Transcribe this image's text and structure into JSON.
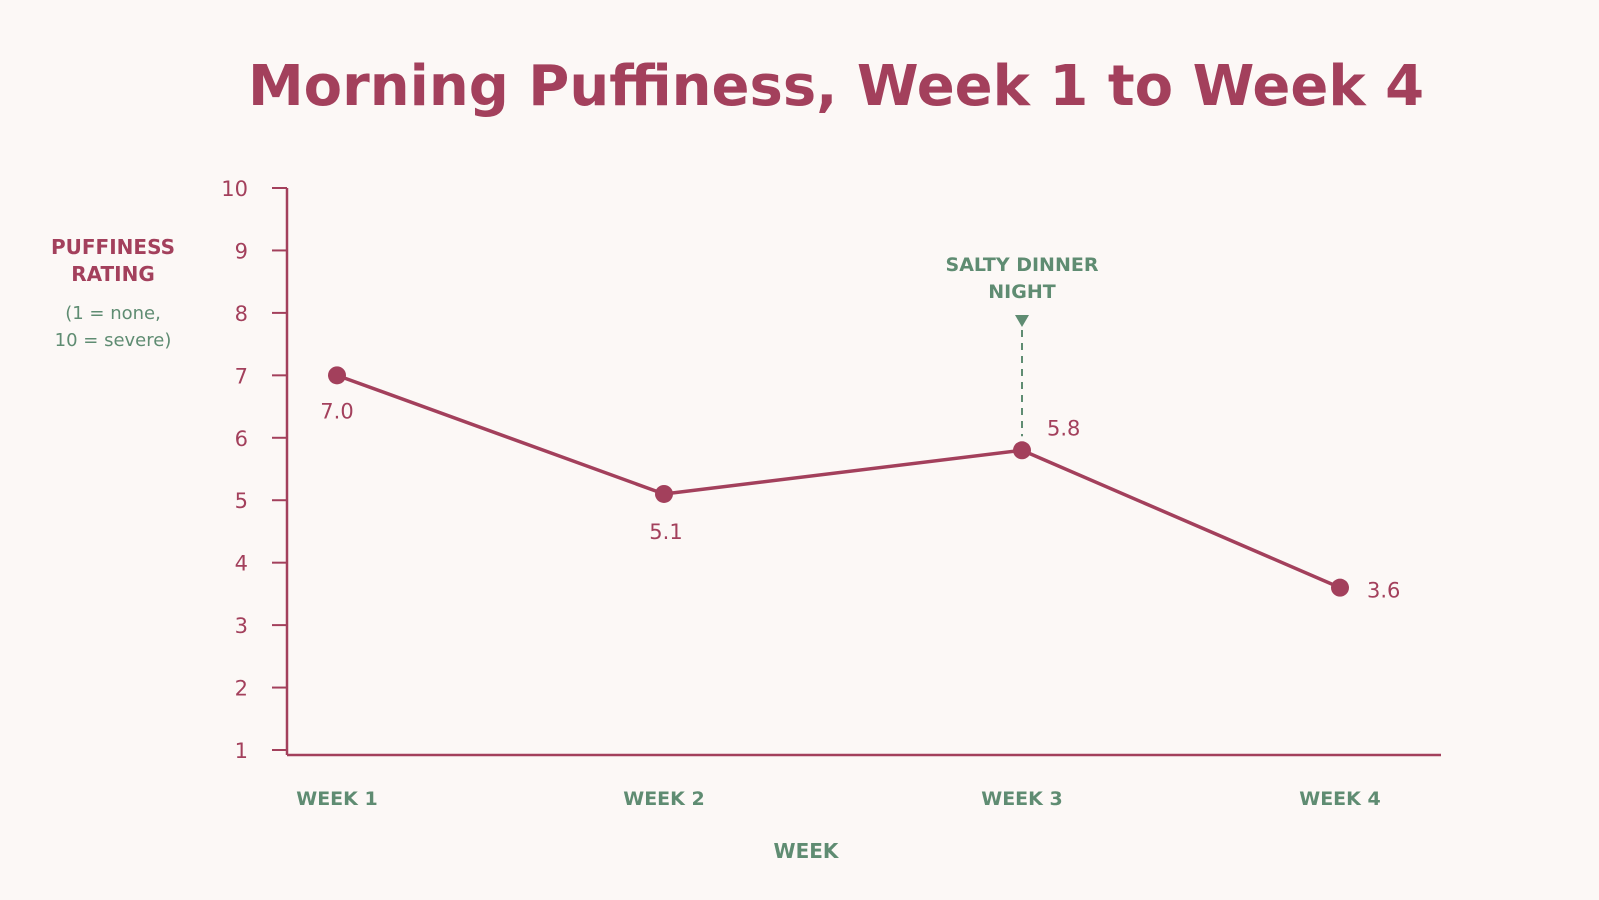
{
  "colors": {
    "primary": "#a3405c",
    "secondary": "#5f8c72",
    "background": "#fcf8f6"
  },
  "chart_data": {
    "type": "line",
    "title": "Morning Puffiness, Week 1 to Week 4",
    "xlabel": "WEEK",
    "ylabel": [
      "PUFFINESS",
      "RATING"
    ],
    "ylabel_note": [
      "(1 = none,",
      "10 = severe)"
    ],
    "categories": [
      "WEEK 1",
      "WEEK 2",
      "WEEK 3",
      "WEEK 4"
    ],
    "values": [
      7.0,
      5.1,
      5.8,
      3.6
    ],
    "value_labels": [
      "7.0",
      "5.1",
      "5.8",
      "3.6"
    ],
    "ylim": [
      1,
      10
    ],
    "yticks": [
      1,
      2,
      3,
      4,
      5,
      6,
      7,
      8,
      9,
      10
    ],
    "grid": false,
    "annotations": [
      {
        "category_index": 2,
        "lines": [
          "SALTY DINNER",
          "NIGHT"
        ]
      }
    ]
  }
}
